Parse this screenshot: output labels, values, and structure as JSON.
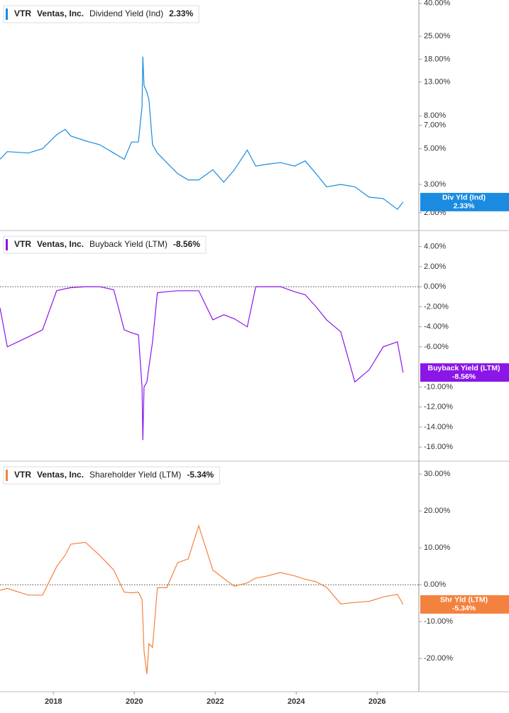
{
  "chart_data": [
    {
      "type": "line",
      "log_scale": true,
      "zero_line": false,
      "legend": {
        "ticker": "VTR",
        "company": "Ventas, Inc.",
        "metric": "Dividend Yield (Ind)"
      },
      "x": [
        2016.68,
        2016.86,
        2017.38,
        2017.73,
        2018.08,
        2018.29,
        2018.43,
        2018.79,
        2019.14,
        2019.49,
        2019.75,
        2019.93,
        2020.1,
        2020.19,
        2020.21,
        2020.24,
        2020.31,
        2020.36,
        2020.45,
        2020.57,
        2020.8,
        2021.07,
        2021.33,
        2021.59,
        2021.94,
        2022.21,
        2022.47,
        2022.79,
        2023.0,
        2023.26,
        2023.61,
        2023.96,
        2024.22,
        2024.49,
        2024.75,
        2025.1,
        2025.45,
        2025.8,
        2026.15,
        2026.5,
        2026.64
      ],
      "xlim": [
        2016.68,
        2027.03
      ],
      "series": [
        {
          "name": "Div Yld (Ind)",
          "color": "#1a8be0",
          "current_label": "2.33%",
          "values": [
            4.3,
            4.8,
            4.7,
            5.0,
            6.1,
            6.6,
            6.0,
            5.6,
            5.3,
            4.7,
            4.3,
            5.5,
            5.5,
            9.2,
            18.7,
            12.4,
            11.2,
            10.1,
            5.3,
            4.7,
            4.1,
            3.5,
            3.2,
            3.2,
            3.7,
            3.1,
            3.7,
            4.9,
            3.9,
            4.0,
            4.1,
            3.9,
            4.2,
            3.5,
            2.9,
            3.0,
            2.9,
            2.5,
            2.45,
            2.1,
            2.33
          ]
        }
      ],
      "ylim": [
        1.55,
        42
      ],
      "yticks": [
        {
          "value": 2,
          "label": "2.00%"
        },
        {
          "value": 3,
          "label": "3.00%"
        },
        {
          "value": 5,
          "label": "5.00%"
        },
        {
          "value": 7,
          "label": "7.00%"
        },
        {
          "value": 8,
          "label": "8.00%"
        },
        {
          "value": 13,
          "label": "13.00%"
        },
        {
          "value": 18,
          "label": "18.00%"
        },
        {
          "value": 25,
          "label": "25.00%"
        },
        {
          "value": 40,
          "label": "40.00%"
        }
      ]
    },
    {
      "type": "line",
      "log_scale": false,
      "zero_line": true,
      "legend": {
        "ticker": "VTR",
        "company": "Ventas, Inc.",
        "metric": "Buyback Yield (LTM)"
      },
      "x": [
        2016.68,
        2016.86,
        2017.38,
        2017.73,
        2018.08,
        2018.29,
        2018.43,
        2018.79,
        2019.14,
        2019.49,
        2019.75,
        2019.93,
        2020.1,
        2020.19,
        2020.21,
        2020.24,
        2020.31,
        2020.36,
        2020.45,
        2020.57,
        2020.8,
        2021.07,
        2021.33,
        2021.59,
        2021.94,
        2022.21,
        2022.47,
        2022.79,
        2023.0,
        2023.26,
        2023.61,
        2023.96,
        2024.22,
        2024.49,
        2024.75,
        2025.1,
        2025.45,
        2025.8,
        2026.15,
        2026.5,
        2026.64
      ],
      "xlim": [
        2016.68,
        2027.03
      ],
      "series": [
        {
          "name": "Buyback Yield (LTM)",
          "color": "#8b16e8",
          "current_label": "-8.56%",
          "values": [
            -2.1,
            -6.0,
            -5.0,
            -4.3,
            -0.4,
            -0.2,
            -0.1,
            0,
            0,
            -0.3,
            -4.3,
            -4.6,
            -4.8,
            -10,
            -15.3,
            -10,
            -9.5,
            -8,
            -5.5,
            -0.6,
            -0.5,
            -0.4,
            -0.4,
            -0.4,
            -3.3,
            -2.8,
            -3.2,
            -4.0,
            0,
            0,
            0,
            -0.5,
            -0.8,
            -2,
            -3.3,
            -4.5,
            -9.5,
            -8.3,
            -6.0,
            -5.5,
            -8.56
          ]
        }
      ],
      "ylim": [
        -17.4,
        5.6
      ],
      "yticks": [
        {
          "value": -16,
          "label": "-16.00%"
        },
        {
          "value": -14,
          "label": "-14.00%"
        },
        {
          "value": -12,
          "label": "-12.00%"
        },
        {
          "value": -10,
          "label": "-10.00%"
        },
        {
          "value": -6,
          "label": "-6.00%"
        },
        {
          "value": -4,
          "label": "-4.00%"
        },
        {
          "value": -2,
          "label": "-2.00%"
        },
        {
          "value": 0,
          "label": "0.00%"
        },
        {
          "value": 2,
          "label": "2.00%"
        },
        {
          "value": 4,
          "label": "4.00%"
        }
      ]
    },
    {
      "type": "line",
      "log_scale": false,
      "zero_line": true,
      "legend": {
        "ticker": "VTR",
        "company": "Ventas, Inc.",
        "metric": "Shareholder Yield (LTM)"
      },
      "x": [
        2016.68,
        2016.86,
        2017.38,
        2017.73,
        2018.08,
        2018.29,
        2018.43,
        2018.79,
        2019.14,
        2019.49,
        2019.75,
        2019.93,
        2020.1,
        2020.19,
        2020.21,
        2020.24,
        2020.31,
        2020.36,
        2020.45,
        2020.57,
        2020.8,
        2021.07,
        2021.33,
        2021.59,
        2021.94,
        2022.21,
        2022.47,
        2022.79,
        2023.0,
        2023.26,
        2023.61,
        2023.96,
        2024.22,
        2024.49,
        2024.75,
        2025.1,
        2025.45,
        2025.8,
        2026.15,
        2026.5,
        2026.64
      ],
      "xlim": [
        2016.68,
        2027.03
      ],
      "xticks": [
        2018,
        2020,
        2022,
        2024,
        2026
      ],
      "series": [
        {
          "name": "Shr Yld (LTM)",
          "color": "#f4823f",
          "current_label": "-5.34%",
          "values": [
            -1.5,
            -1,
            -2.8,
            -2.8,
            4.9,
            8,
            11,
            11.5,
            8,
            4,
            -2,
            -2.2,
            -2,
            -4,
            -9,
            -18,
            -24.2,
            -16,
            -17,
            -0.8,
            -0.8,
            6,
            7,
            16,
            4,
            1.7,
            -0.4,
            0.5,
            1.8,
            2.3,
            3.3,
            2.4,
            1.5,
            0.8,
            -0.7,
            -5.2,
            -4.8,
            -4.5,
            -3.3,
            -2.6,
            -5.34
          ]
        }
      ],
      "ylim": [
        -29,
        33.5
      ],
      "yticks": [
        {
          "value": -20,
          "label": "-20.00%"
        },
        {
          "value": -10,
          "label": "-10.00%"
        },
        {
          "value": 0,
          "label": "0.00%"
        },
        {
          "value": 10,
          "label": "10.00%"
        },
        {
          "value": 20,
          "label": "20.00%"
        },
        {
          "value": 30,
          "label": "30.00%"
        }
      ]
    }
  ]
}
